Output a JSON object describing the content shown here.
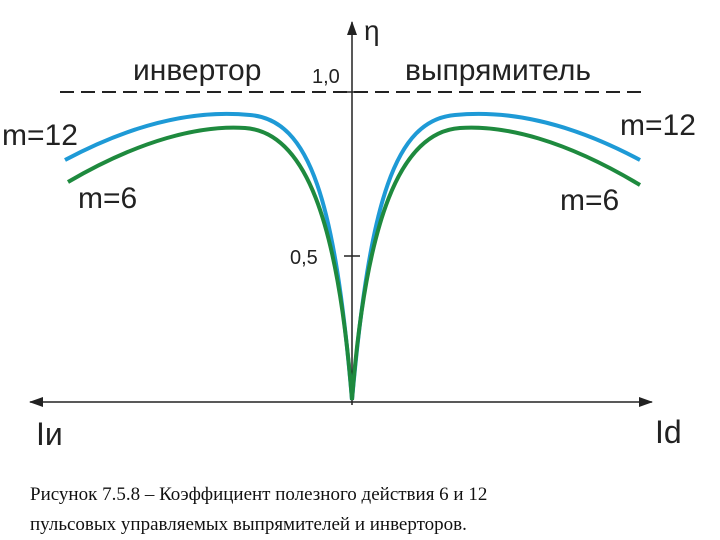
{
  "axis": {
    "y_label": "η",
    "x_left_label": "Iи",
    "x_right_label": "Id",
    "ticks": [
      "1,0",
      "0,5"
    ]
  },
  "regions": {
    "left": "инвертор",
    "right": "выпрямитель"
  },
  "curves": {
    "m12_left": "m=12",
    "m12_right": "m=12",
    "m6_left": "m=6",
    "m6_right": "m=6"
  },
  "caption": {
    "line1": "Рисунок 7.5.8 – Коэффициент полезного действия 6 и 12",
    "line2": "пульсовых управляемых выпрямителей и инверторов."
  }
}
